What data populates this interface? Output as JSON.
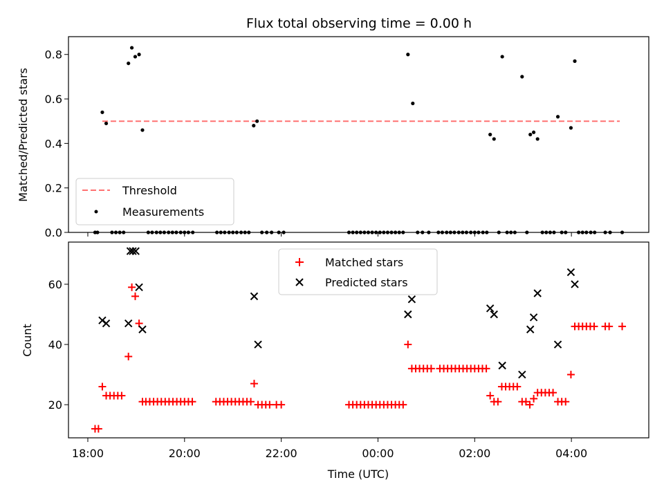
{
  "chart_data": [
    {
      "type": "scatter",
      "title": "Flux total observing time = 0.00 h",
      "xlabel": "",
      "ylabel": "Matched/Predicted stars",
      "xlim": [
        17.6,
        29.6
      ],
      "ylim": [
        0,
        0.88
      ],
      "yticks": [
        "0.0",
        "0.2",
        "0.4",
        "0.6",
        "0.8"
      ],
      "yticks_values": [
        0,
        0.2,
        0.4,
        0.6,
        0.8
      ],
      "threshold": {
        "name": "Threshold",
        "value": 0.5,
        "x_range": [
          18.3,
          29.0
        ],
        "color": "#ff7070"
      },
      "legend": {
        "position": "lower-left",
        "entries": [
          "Threshold",
          "Measurements"
        ]
      },
      "series": [
        {
          "name": "Measurements",
          "color": "#000000",
          "points": [
            [
              18.15,
              0
            ],
            [
              18.2,
              0
            ],
            [
              18.3,
              0.54
            ],
            [
              18.38,
              0.49
            ],
            [
              18.5,
              0
            ],
            [
              18.58,
              0
            ],
            [
              18.66,
              0
            ],
            [
              18.74,
              0
            ],
            [
              18.84,
              0.76
            ],
            [
              18.91,
              0.83
            ],
            [
              18.98,
              0.79
            ],
            [
              19.06,
              0.8
            ],
            [
              19.13,
              0.46
            ],
            [
              19.25,
              0
            ],
            [
              19.33,
              0
            ],
            [
              19.42,
              0
            ],
            [
              19.5,
              0
            ],
            [
              19.58,
              0
            ],
            [
              19.67,
              0
            ],
            [
              19.75,
              0
            ],
            [
              19.83,
              0
            ],
            [
              19.92,
              0
            ],
            [
              20.0,
              0
            ],
            [
              20.08,
              0
            ],
            [
              20.17,
              0
            ],
            [
              20.67,
              0
            ],
            [
              20.75,
              0
            ],
            [
              20.83,
              0
            ],
            [
              20.92,
              0
            ],
            [
              21.0,
              0
            ],
            [
              21.08,
              0
            ],
            [
              21.17,
              0
            ],
            [
              21.25,
              0
            ],
            [
              21.33,
              0
            ],
            [
              21.43,
              0.48
            ],
            [
              21.5,
              0.5
            ],
            [
              21.6,
              0
            ],
            [
              21.7,
              0
            ],
            [
              21.8,
              0
            ],
            [
              21.95,
              0
            ],
            [
              22.05,
              0
            ],
            [
              23.4,
              0
            ],
            [
              23.48,
              0
            ],
            [
              23.56,
              0
            ],
            [
              23.64,
              0
            ],
            [
              23.72,
              0
            ],
            [
              23.8,
              0
            ],
            [
              23.88,
              0
            ],
            [
              23.96,
              0
            ],
            [
              24.04,
              0
            ],
            [
              24.12,
              0
            ],
            [
              24.2,
              0
            ],
            [
              24.28,
              0
            ],
            [
              24.36,
              0
            ],
            [
              24.44,
              0
            ],
            [
              24.52,
              0
            ],
            [
              24.62,
              0.8
            ],
            [
              24.72,
              0.58
            ],
            [
              24.82,
              0
            ],
            [
              24.92,
              0
            ],
            [
              25.05,
              0
            ],
            [
              25.25,
              0
            ],
            [
              25.33,
              0
            ],
            [
              25.42,
              0
            ],
            [
              25.5,
              0
            ],
            [
              25.58,
              0
            ],
            [
              25.67,
              0
            ],
            [
              25.75,
              0
            ],
            [
              25.83,
              0
            ],
            [
              25.92,
              0
            ],
            [
              26.0,
              0
            ],
            [
              26.08,
              0
            ],
            [
              26.17,
              0
            ],
            [
              26.25,
              0
            ],
            [
              26.32,
              0.44
            ],
            [
              26.4,
              0.42
            ],
            [
              26.5,
              0
            ],
            [
              26.57,
              0.79
            ],
            [
              26.67,
              0
            ],
            [
              26.75,
              0
            ],
            [
              26.83,
              0
            ],
            [
              26.98,
              0.7
            ],
            [
              27.08,
              0
            ],
            [
              27.15,
              0.44
            ],
            [
              27.22,
              0.45
            ],
            [
              27.3,
              0.42
            ],
            [
              27.4,
              0
            ],
            [
              27.48,
              0
            ],
            [
              27.56,
              0
            ],
            [
              27.64,
              0
            ],
            [
              27.72,
              0.52
            ],
            [
              27.8,
              0
            ],
            [
              27.88,
              0
            ],
            [
              27.99,
              0.47
            ],
            [
              28.07,
              0.77
            ],
            [
              28.15,
              0
            ],
            [
              28.23,
              0
            ],
            [
              28.31,
              0
            ],
            [
              28.4,
              0
            ],
            [
              28.48,
              0
            ],
            [
              28.7,
              0
            ],
            [
              28.8,
              0
            ],
            [
              29.05,
              0
            ]
          ]
        }
      ]
    },
    {
      "type": "scatter",
      "title": "",
      "xlabel": "Time (UTC)",
      "ylabel": "Count",
      "xlim": [
        17.6,
        29.6
      ],
      "ylim": [
        9,
        74
      ],
      "xticks": [
        "18:00",
        "20:00",
        "22:00",
        "00:00",
        "02:00",
        "04:00"
      ],
      "xticks_values": [
        18,
        20,
        22,
        24,
        26,
        28
      ],
      "yticks": [
        "20",
        "40",
        "60"
      ],
      "yticks_values": [
        20,
        40,
        60
      ],
      "legend": {
        "position": "upper-center",
        "entries": [
          "Matched stars",
          "Predicted stars"
        ]
      },
      "series": [
        {
          "name": "Matched stars",
          "marker": "plus",
          "color": "#ff0000",
          "points": [
            [
              18.15,
              12
            ],
            [
              18.22,
              12
            ],
            [
              18.3,
              26
            ],
            [
              18.38,
              23
            ],
            [
              18.46,
              23
            ],
            [
              18.54,
              23
            ],
            [
              18.62,
              23
            ],
            [
              18.7,
              23
            ],
            [
              18.84,
              36
            ],
            [
              18.91,
              59
            ],
            [
              18.98,
              56
            ],
            [
              19.06,
              47
            ],
            [
              19.13,
              21
            ],
            [
              19.2,
              21
            ],
            [
              19.28,
              21
            ],
            [
              19.36,
              21
            ],
            [
              19.44,
              21
            ],
            [
              19.52,
              21
            ],
            [
              19.6,
              21
            ],
            [
              19.68,
              21
            ],
            [
              19.76,
              21
            ],
            [
              19.84,
              21
            ],
            [
              19.92,
              21
            ],
            [
              20.0,
              21
            ],
            [
              20.08,
              21
            ],
            [
              20.16,
              21
            ],
            [
              20.65,
              21
            ],
            [
              20.73,
              21
            ],
            [
              20.81,
              21
            ],
            [
              20.89,
              21
            ],
            [
              20.97,
              21
            ],
            [
              21.05,
              21
            ],
            [
              21.13,
              21
            ],
            [
              21.21,
              21
            ],
            [
              21.29,
              21
            ],
            [
              21.37,
              21
            ],
            [
              21.44,
              27
            ],
            [
              21.52,
              20
            ],
            [
              21.6,
              20
            ],
            [
              21.68,
              20
            ],
            [
              21.76,
              20
            ],
            [
              21.9,
              20
            ],
            [
              22.0,
              20
            ],
            [
              23.4,
              20
            ],
            [
              23.48,
              20
            ],
            [
              23.56,
              20
            ],
            [
              23.64,
              20
            ],
            [
              23.72,
              20
            ],
            [
              23.8,
              20
            ],
            [
              23.88,
              20
            ],
            [
              23.96,
              20
            ],
            [
              24.04,
              20
            ],
            [
              24.12,
              20
            ],
            [
              24.2,
              20
            ],
            [
              24.28,
              20
            ],
            [
              24.36,
              20
            ],
            [
              24.44,
              20
            ],
            [
              24.52,
              20
            ],
            [
              24.62,
              40
            ],
            [
              24.7,
              32
            ],
            [
              24.78,
              32
            ],
            [
              24.86,
              32
            ],
            [
              24.94,
              32
            ],
            [
              25.02,
              32
            ],
            [
              25.1,
              32
            ],
            [
              25.28,
              32
            ],
            [
              25.36,
              32
            ],
            [
              25.44,
              32
            ],
            [
              25.52,
              32
            ],
            [
              25.6,
              32
            ],
            [
              25.68,
              32
            ],
            [
              25.76,
              32
            ],
            [
              25.84,
              32
            ],
            [
              25.92,
              32
            ],
            [
              26.0,
              32
            ],
            [
              26.08,
              32
            ],
            [
              26.16,
              32
            ],
            [
              26.24,
              32
            ],
            [
              26.32,
              23
            ],
            [
              26.4,
              21
            ],
            [
              26.48,
              21
            ],
            [
              26.56,
              26
            ],
            [
              26.64,
              26
            ],
            [
              26.72,
              26
            ],
            [
              26.8,
              26
            ],
            [
              26.88,
              26
            ],
            [
              26.98,
              21
            ],
            [
              27.06,
              21
            ],
            [
              27.14,
              20
            ],
            [
              27.22,
              22
            ],
            [
              27.3,
              24
            ],
            [
              27.38,
              24
            ],
            [
              27.46,
              24
            ],
            [
              27.54,
              24
            ],
            [
              27.62,
              24
            ],
            [
              27.72,
              21
            ],
            [
              27.8,
              21
            ],
            [
              27.88,
              21
            ],
            [
              27.99,
              30
            ],
            [
              28.07,
              46
            ],
            [
              28.15,
              46
            ],
            [
              28.23,
              46
            ],
            [
              28.31,
              46
            ],
            [
              28.39,
              46
            ],
            [
              28.47,
              46
            ],
            [
              28.7,
              46
            ],
            [
              28.78,
              46
            ],
            [
              29.05,
              46
            ]
          ]
        },
        {
          "name": "Predicted stars",
          "marker": "x",
          "color": "#000000",
          "points": [
            [
              18.3,
              48
            ],
            [
              18.38,
              47
            ],
            [
              18.84,
              47
            ],
            [
              18.88,
              71
            ],
            [
              18.93,
              71
            ],
            [
              18.99,
              71
            ],
            [
              19.06,
              59
            ],
            [
              19.13,
              45
            ],
            [
              21.44,
              56
            ],
            [
              21.52,
              40
            ],
            [
              24.62,
              50
            ],
            [
              24.7,
              55
            ],
            [
              26.32,
              52
            ],
            [
              26.4,
              50
            ],
            [
              26.57,
              33
            ],
            [
              26.98,
              30
            ],
            [
              27.15,
              45
            ],
            [
              27.22,
              49
            ],
            [
              27.3,
              57
            ],
            [
              27.72,
              40
            ],
            [
              27.99,
              64
            ],
            [
              28.07,
              60
            ]
          ]
        }
      ]
    }
  ]
}
